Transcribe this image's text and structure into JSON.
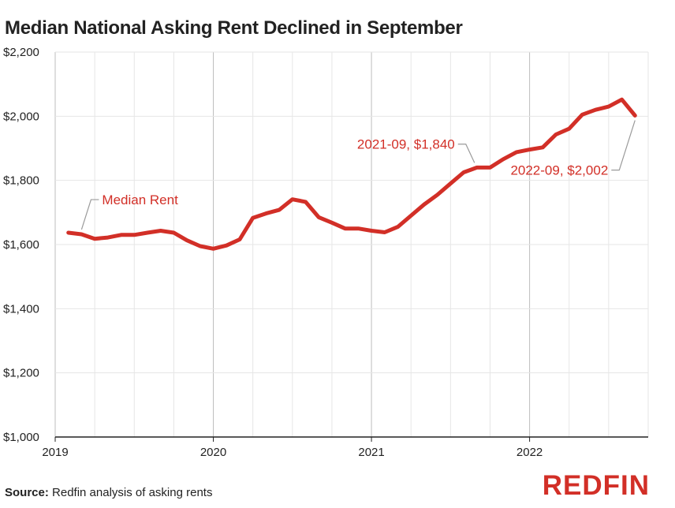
{
  "title": "Median National Asking Rent Declined in September",
  "source_label": "Source:",
  "source_text": "Redfin analysis of asking rents",
  "brand": "REDFIN",
  "colors": {
    "series": "#d22f27",
    "grid_minor": "#e6e6e6",
    "grid_major": "#bdbdbd",
    "text": "#222222"
  },
  "chart_data": {
    "type": "line",
    "title": "Median National Asking Rent Declined in September",
    "xlabel": "",
    "ylabel": "",
    "ylim": [
      1000,
      2200
    ],
    "yticks": [
      1000,
      1200,
      1400,
      1600,
      1800,
      2000,
      2200
    ],
    "ytick_labels": [
      "$1,000",
      "$1,200",
      "$1,400",
      "$1,600",
      "$1,800",
      "$2,000",
      "$2,200"
    ],
    "xticks": [
      "2019-01",
      "2020-01",
      "2021-01",
      "2022-01"
    ],
    "xtick_labels": [
      "2019",
      "2020",
      "2021",
      "2022"
    ],
    "grid": true,
    "series": [
      {
        "name": "Median Rent",
        "x": [
          "2019-02",
          "2019-03",
          "2019-04",
          "2019-05",
          "2019-06",
          "2019-07",
          "2019-08",
          "2019-09",
          "2019-10",
          "2019-11",
          "2019-12",
          "2020-01",
          "2020-02",
          "2020-03",
          "2020-04",
          "2020-05",
          "2020-06",
          "2020-07",
          "2020-08",
          "2020-09",
          "2020-10",
          "2020-11",
          "2020-12",
          "2021-01",
          "2021-02",
          "2021-03",
          "2021-04",
          "2021-05",
          "2021-06",
          "2021-07",
          "2021-08",
          "2021-09",
          "2021-10",
          "2021-11",
          "2021-12",
          "2022-01",
          "2022-02",
          "2022-03",
          "2022-04",
          "2022-05",
          "2022-06",
          "2022-07",
          "2022-08",
          "2022-09"
        ],
        "y": [
          1637,
          1632,
          1618,
          1622,
          1630,
          1630,
          1637,
          1643,
          1637,
          1613,
          1595,
          1587,
          1597,
          1616,
          1683,
          1697,
          1708,
          1741,
          1733,
          1685,
          1668,
          1650,
          1650,
          1643,
          1638,
          1655,
          1690,
          1725,
          1755,
          1790,
          1825,
          1840,
          1840,
          1866,
          1888,
          1896,
          1903,
          1943,
          1961,
          2005,
          2020,
          2030,
          2052,
          2002
        ]
      }
    ],
    "annotations": [
      {
        "text": "Median Rent"
      },
      {
        "text": "2021-09, $1,840"
      },
      {
        "text": "2022-09, $2,002"
      }
    ]
  }
}
